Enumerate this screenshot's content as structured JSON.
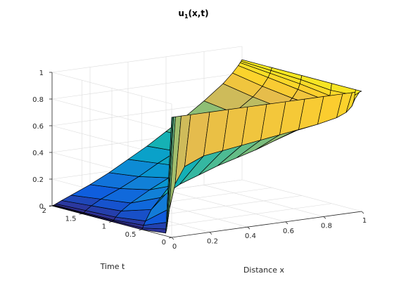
{
  "figure": {
    "background": "#ffffff"
  },
  "chart_data": {
    "type": "surface",
    "title": "u",
    "title_subscript": "1",
    "title_suffix": "(x,t)",
    "xlabel": "Distance x",
    "ylabel": "Time t",
    "zlabel": "",
    "xlim": [
      0,
      1
    ],
    "ylim": [
      0,
      2
    ],
    "zlim": [
      0,
      1
    ],
    "x_ticks": [
      0,
      0.2,
      0.4,
      0.6,
      0.8,
      1
    ],
    "x_tick_labels": [
      "0",
      "0.2",
      "0.4",
      "0.6",
      "0.8",
      "1"
    ],
    "y_ticks": [
      0,
      0.5,
      1,
      1.5,
      2
    ],
    "y_tick_labels": [
      "0",
      "0.5",
      "1",
      "1.5",
      "2"
    ],
    "z_ticks": [
      0,
      0.2,
      0.4,
      0.6,
      0.8,
      1
    ],
    "z_tick_labels": [
      "0",
      "0.2",
      "0.4",
      "0.6",
      "0.8",
      "1"
    ],
    "grid": true,
    "colormap": "parula",
    "x": [
      0,
      0.005,
      0.01,
      0.02,
      0.05,
      0.1,
      0.2,
      0.3,
      0.4,
      0.5,
      0.6,
      0.7,
      0.8,
      0.9,
      0.95,
      0.98,
      0.99,
      0.995,
      1
    ],
    "t": [
      0,
      0.1,
      0.5,
      1,
      1.5,
      2
    ],
    "u": [
      [
        0.9,
        0.9,
        0.9,
        0.9,
        0.9,
        0.9,
        0.9,
        0.9,
        0.9,
        0.9,
        0.9,
        0.9,
        0.9,
        0.9,
        0.9,
        0.9,
        0.9,
        0.9,
        0.9
      ],
      [
        0.02,
        0.05,
        0.1,
        0.2,
        0.38,
        0.5,
        0.56,
        0.58,
        0.6,
        0.62,
        0.64,
        0.66,
        0.68,
        0.71,
        0.74,
        0.78,
        0.82,
        0.86,
        0.9
      ],
      [
        0.0,
        0.01,
        0.03,
        0.06,
        0.14,
        0.22,
        0.3,
        0.35,
        0.4,
        0.44,
        0.48,
        0.53,
        0.58,
        0.66,
        0.72,
        0.77,
        0.81,
        0.85,
        0.9
      ],
      [
        0.0,
        0.005,
        0.01,
        0.03,
        0.07,
        0.12,
        0.2,
        0.27,
        0.33,
        0.39,
        0.45,
        0.51,
        0.58,
        0.67,
        0.74,
        0.8,
        0.84,
        0.87,
        0.9
      ],
      [
        0.0,
        0.003,
        0.006,
        0.02,
        0.05,
        0.09,
        0.15,
        0.22,
        0.3,
        0.37,
        0.44,
        0.52,
        0.6,
        0.7,
        0.77,
        0.83,
        0.86,
        0.88,
        0.9
      ],
      [
        0.0,
        0.002,
        0.004,
        0.01,
        0.03,
        0.06,
        0.12,
        0.19,
        0.27,
        0.35,
        0.44,
        0.53,
        0.63,
        0.74,
        0.81,
        0.86,
        0.88,
        0.89,
        0.9
      ]
    ]
  }
}
